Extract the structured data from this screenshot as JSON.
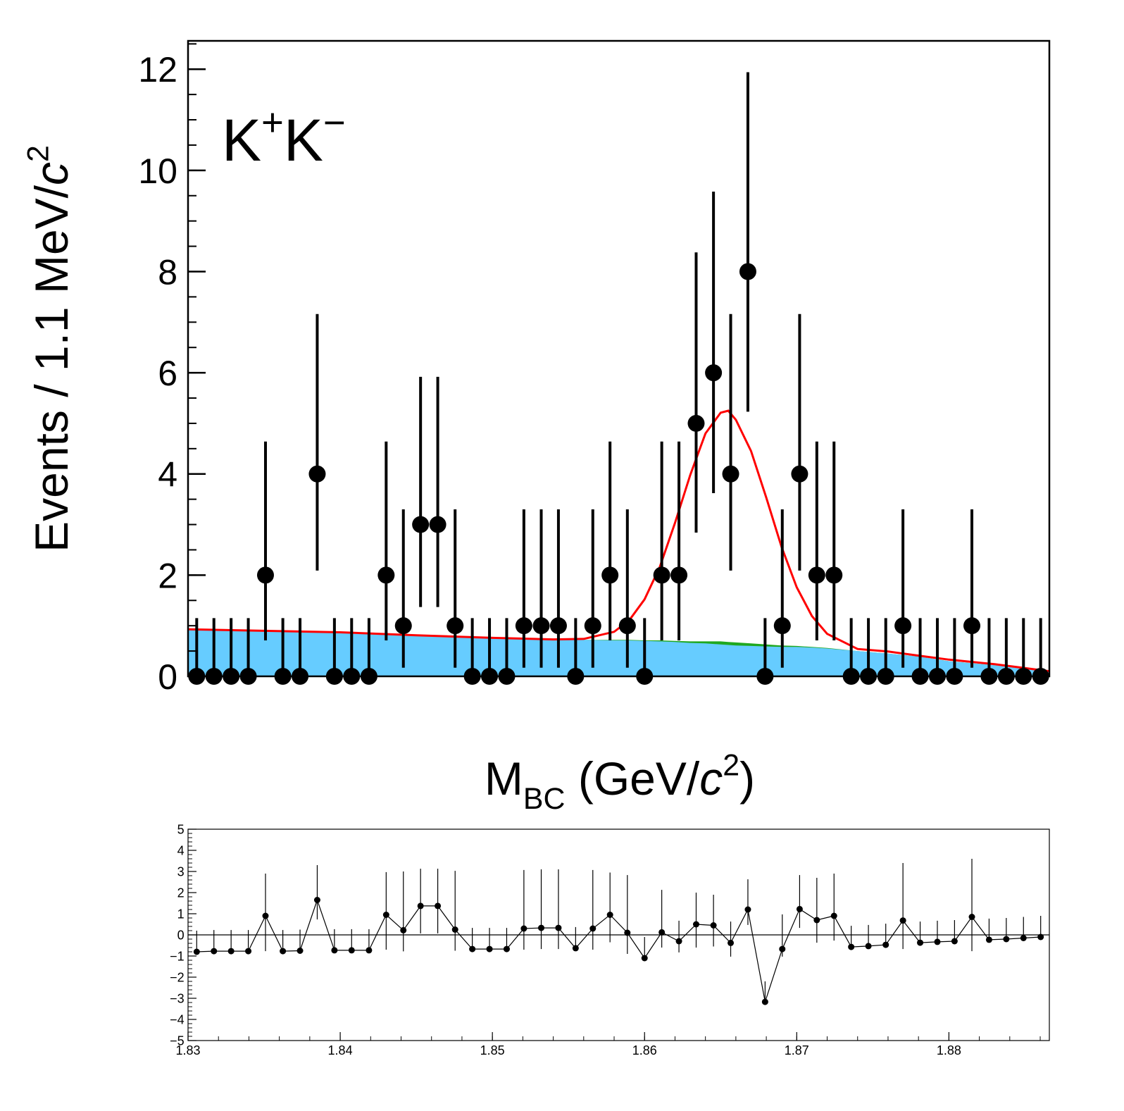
{
  "chart_data": [
    {
      "type": "errorbar",
      "y_label": [
        {
          "text": "Events / 1.1 MeV/"
        },
        {
          "text": "c",
          "style": "italic"
        },
        {
          "text": "2",
          "style": "sup"
        }
      ],
      "annotation": [
        {
          "text": "K"
        },
        {
          "text": "+",
          "style": "sup"
        },
        {
          "text": "K"
        },
        {
          "text": "−",
          "style": "sup"
        }
      ],
      "x_label": [
        {
          "text": "M"
        },
        {
          "text": "BC",
          "style": "sub"
        },
        {
          "text": " (GeV/"
        },
        {
          "text": "c",
          "style": "italic"
        },
        {
          "text": "2",
          "style": "sup"
        },
        {
          "text": ")"
        }
      ],
      "color": "#000000",
      "xlim": [
        1.83,
        1.8866
      ],
      "ylim": [
        0,
        12.56
      ],
      "yticks": [
        0,
        2,
        4,
        6,
        8,
        10,
        12
      ],
      "x": [
        1.83057,
        1.8317,
        1.83283,
        1.83396,
        1.83509,
        1.83623,
        1.83736,
        1.83849,
        1.83962,
        1.84075,
        1.84189,
        1.84302,
        1.84415,
        1.84528,
        1.84641,
        1.84755,
        1.84868,
        1.84981,
        1.85094,
        1.85207,
        1.85321,
        1.85434,
        1.85547,
        1.8566,
        1.85773,
        1.85887,
        1.86,
        1.86113,
        1.86226,
        1.86339,
        1.86453,
        1.86566,
        1.86679,
        1.86792,
        1.86905,
        1.87019,
        1.87132,
        1.87245,
        1.87358,
        1.87471,
        1.87585,
        1.87698,
        1.87811,
        1.87924,
        1.88037,
        1.88151,
        1.88264,
        1.88377,
        1.8849,
        1.88603
      ],
      "values": [
        0,
        0,
        0,
        0,
        2,
        0,
        0,
        4,
        0,
        0,
        0,
        2,
        1,
        3,
        3,
        1,
        0,
        0,
        0,
        1,
        1,
        1,
        0,
        1,
        2,
        1,
        0,
        2,
        2,
        5,
        6,
        4,
        8,
        0,
        1,
        4,
        2,
        2,
        0,
        0,
        0,
        1,
        0,
        0,
        0,
        1,
        0,
        0,
        0,
        0
      ],
      "err_low": [
        0,
        0,
        0,
        0,
        1.29,
        0,
        0,
        1.91,
        0,
        0,
        0,
        1.29,
        0.83,
        1.63,
        1.63,
        0.83,
        0,
        0,
        0,
        0.83,
        0.83,
        0.83,
        0,
        0.83,
        1.29,
        0.83,
        0,
        1.29,
        1.29,
        2.16,
        2.38,
        1.91,
        2.77,
        0,
        0.83,
        1.91,
        1.29,
        1.29,
        0,
        0,
        0,
        0.83,
        0,
        0,
        0,
        0.83,
        0,
        0,
        0,
        0
      ],
      "err_high": [
        1.15,
        1.15,
        1.15,
        1.15,
        2.64,
        1.15,
        1.15,
        3.16,
        1.15,
        1.15,
        1.15,
        2.64,
        2.3,
        2.92,
        2.92,
        2.3,
        1.15,
        1.15,
        1.15,
        2.3,
        2.3,
        2.3,
        1.15,
        2.3,
        2.64,
        2.3,
        1.15,
        2.64,
        2.64,
        3.38,
        3.58,
        3.16,
        3.94,
        1.15,
        2.3,
        3.16,
        2.64,
        2.64,
        1.15,
        1.15,
        1.15,
        2.3,
        1.15,
        1.15,
        1.15,
        2.3,
        1.15,
        1.15,
        1.15,
        1.15
      ],
      "curves": [
        {
          "style": "area",
          "color": "#1fa81f",
          "x": [
            1.83,
            1.835,
            1.84,
            1.845,
            1.85,
            1.854,
            1.856,
            1.858,
            1.859,
            1.86,
            1.861,
            1.862,
            1.863,
            1.864,
            1.865,
            1.8655,
            1.866,
            1.867,
            1.868,
            1.869,
            1.87,
            1.871,
            1.872,
            1.874,
            1.876,
            1.878,
            1.88,
            1.883,
            1.8866
          ],
          "values": [
            0.92,
            0.89,
            0.86,
            0.8,
            0.75,
            0.73,
            0.72,
            0.72,
            0.72,
            0.71,
            0.71,
            0.7,
            0.69,
            0.69,
            0.69,
            0.68,
            0.67,
            0.65,
            0.63,
            0.61,
            0.6,
            0.58,
            0.56,
            0.5,
            0.45,
            0.39,
            0.3,
            0.22,
            0.08
          ]
        },
        {
          "style": "area",
          "color": "#66ccff",
          "x": [
            1.83,
            1.835,
            1.84,
            1.845,
            1.85,
            1.854,
            1.856,
            1.858,
            1.859,
            1.86,
            1.861,
            1.862,
            1.863,
            1.864,
            1.865,
            1.8655,
            1.866,
            1.867,
            1.868,
            1.869,
            1.87,
            1.871,
            1.872,
            1.874,
            1.876,
            1.878,
            1.88,
            1.883,
            1.8866
          ],
          "values": [
            0.92,
            0.89,
            0.86,
            0.8,
            0.75,
            0.73,
            0.72,
            0.71,
            0.71,
            0.7,
            0.69,
            0.68,
            0.66,
            0.65,
            0.63,
            0.62,
            0.61,
            0.6,
            0.59,
            0.58,
            0.58,
            0.57,
            0.55,
            0.5,
            0.45,
            0.39,
            0.3,
            0.22,
            0.08
          ]
        },
        {
          "style": "line",
          "color": "#ff0000",
          "x": [
            1.83,
            1.835,
            1.84,
            1.845,
            1.85,
            1.854,
            1.856,
            1.858,
            1.859,
            1.86,
            1.861,
            1.862,
            1.863,
            1.864,
            1.865,
            1.8655,
            1.866,
            1.867,
            1.868,
            1.869,
            1.87,
            1.871,
            1.872,
            1.874,
            1.876,
            1.878,
            1.88,
            1.883,
            1.8866
          ],
          "values": [
            0.93,
            0.9,
            0.87,
            0.81,
            0.76,
            0.73,
            0.74,
            0.88,
            1.11,
            1.52,
            2.16,
            3.03,
            3.98,
            4.8,
            5.21,
            5.25,
            5.07,
            4.45,
            3.53,
            2.56,
            1.76,
            1.19,
            0.84,
            0.54,
            0.49,
            0.41,
            0.33,
            0.24,
            0.1
          ]
        }
      ]
    },
    {
      "type": "errorbar",
      "connect": true,
      "zero_line": true,
      "color": "#000000",
      "xlim": [
        1.83,
        1.8866
      ],
      "ylim": [
        -5,
        5
      ],
      "xticks": [
        1.83,
        1.84,
        1.85,
        1.86,
        1.87,
        1.88
      ],
      "yticks": [
        {
          "value": -5,
          "label": "−5"
        },
        {
          "value": -4,
          "label": "−4"
        },
        {
          "value": -3,
          "label": "−3"
        },
        {
          "value": -2,
          "label": "−2"
        },
        {
          "value": -1,
          "label": "−1"
        },
        0,
        1,
        2,
        3,
        4,
        5
      ],
      "x": [
        1.83057,
        1.8317,
        1.83283,
        1.83396,
        1.83509,
        1.83623,
        1.83736,
        1.83849,
        1.83962,
        1.84075,
        1.84189,
        1.84302,
        1.84415,
        1.84528,
        1.84641,
        1.84755,
        1.84868,
        1.84981,
        1.85094,
        1.85207,
        1.85321,
        1.85434,
        1.85547,
        1.8566,
        1.85773,
        1.85887,
        1.86,
        1.86113,
        1.86226,
        1.86339,
        1.86453,
        1.86566,
        1.86679,
        1.86792,
        1.86905,
        1.87019,
        1.87132,
        1.87245,
        1.87358,
        1.87471,
        1.87585,
        1.87698,
        1.87811,
        1.87924,
        1.88037,
        1.88151,
        1.88264,
        1.88377,
        1.8849,
        1.88603
      ],
      "values": [
        -0.8,
        -0.77,
        -0.77,
        -0.77,
        0.9,
        -0.77,
        -0.75,
        1.65,
        -0.73,
        -0.73,
        -0.73,
        0.95,
        0.22,
        1.37,
        1.37,
        0.25,
        -0.67,
        -0.67,
        -0.67,
        0.3,
        0.33,
        0.33,
        -0.63,
        0.3,
        0.95,
        0.1,
        -1.1,
        0.12,
        -0.3,
        0.5,
        0.45,
        -0.38,
        1.2,
        -3.17,
        -0.67,
        1.22,
        0.7,
        0.9,
        -0.57,
        -0.53,
        -0.47,
        0.68,
        -0.37,
        -0.33,
        -0.3,
        0.85,
        -0.23,
        -0.2,
        -0.15,
        -0.1
      ],
      "err_low": [
        0,
        0,
        0,
        0,
        1.67,
        0,
        0,
        0.92,
        0,
        0,
        0,
        1.65,
        1.0,
        1.3,
        1.3,
        1.0,
        0,
        0,
        0,
        1.0,
        1.0,
        1.0,
        0,
        1.0,
        1.3,
        1.0,
        0,
        0.72,
        0.53,
        1.1,
        1.0,
        0.65,
        0.73,
        0,
        0.36,
        0.89,
        1.07,
        1.17,
        0,
        0,
        0,
        1.35,
        0,
        0,
        0,
        1.62,
        0,
        0,
        0,
        0
      ],
      "err_high": [
        1,
        1,
        1,
        1,
        2.0,
        1,
        1,
        1.65,
        1,
        1,
        1,
        2.02,
        2.78,
        1.76,
        1.76,
        2.78,
        1,
        1,
        1,
        2.77,
        2.77,
        2.77,
        1,
        2.77,
        2.0,
        2.73,
        1,
        2.01,
        0.97,
        1.5,
        1.45,
        1.01,
        1.43,
        0.97,
        1.64,
        1.61,
        2.0,
        2.0,
        1,
        1,
        1,
        2.72,
        1,
        1,
        1,
        2.75,
        1,
        1,
        1,
        1
      ]
    }
  ]
}
